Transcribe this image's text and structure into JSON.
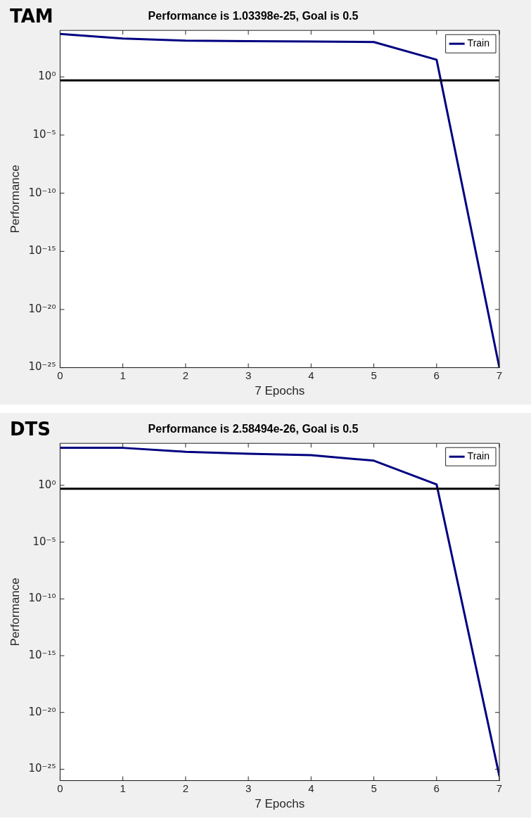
{
  "chart_data": [
    {
      "type": "line",
      "title": "Performance is 1.03398e-25, Goal is 0.5",
      "xlabel": "7 Epochs",
      "ylabel": "Performance",
      "annotations": [
        "TAM"
      ],
      "log": "y",
      "legend": "top right",
      "grid": false,
      "marker": "none",
      "line_style": "solid",
      "x": [
        0,
        1,
        2,
        3,
        4,
        5,
        6,
        7
      ],
      "series": [
        {
          "name": "Train",
          "color": "#000080",
          "values": [
            5000,
            2000,
            1300,
            1200,
            1100,
            1000,
            30,
            1.03398e-25
          ]
        }
      ],
      "xlim": [
        0,
        7
      ],
      "xticks": [
        0,
        1,
        2,
        3,
        4,
        5,
        6,
        7
      ],
      "ylim": [
        1e-25,
        10000
      ],
      "yticks": [
        {
          "value": 1,
          "label": "10⁰"
        },
        {
          "value": 1e-05,
          "label": "10⁻⁵"
        },
        {
          "value": 1e-10,
          "label": "10⁻¹⁰"
        },
        {
          "value": 1e-15,
          "label": "10⁻¹⁵"
        },
        {
          "value": 1e-20,
          "label": "10⁻²⁰"
        },
        {
          "value": 1e-25,
          "label": "10⁻²⁵"
        }
      ],
      "ref_lines": [
        {
          "axis": "y",
          "value": 0.5,
          "color": "#000000"
        }
      ]
    },
    {
      "type": "line",
      "title": "Performance is 2.58494e-26, Goal is 0.5",
      "xlabel": "7 Epochs",
      "ylabel": "Performance",
      "annotations": [
        "DTS"
      ],
      "log": "y",
      "legend": "top right",
      "grid": false,
      "marker": "none",
      "line_style": "solid",
      "x": [
        0,
        1,
        2,
        3,
        4,
        5,
        6,
        7
      ],
      "series": [
        {
          "name": "Train",
          "color": "#000080",
          "values": [
            2000,
            2000,
            900,
            600,
            450,
            150,
            1.2,
            2.58494e-26
          ]
        }
      ],
      "xlim": [
        0,
        7
      ],
      "xticks": [
        0,
        1,
        2,
        3,
        4,
        5,
        6,
        7
      ],
      "ylim": [
        1e-26,
        5000
      ],
      "yticks": [
        {
          "value": 1,
          "label": "10⁰"
        },
        {
          "value": 1e-05,
          "label": "10⁻⁵"
        },
        {
          "value": 1e-10,
          "label": "10⁻¹⁰"
        },
        {
          "value": 1e-15,
          "label": "10⁻¹⁵"
        },
        {
          "value": 1e-20,
          "label": "10⁻²⁰"
        },
        {
          "value": 1e-25,
          "label": "10⁻²⁵"
        }
      ],
      "ref_lines": [
        {
          "axis": "y",
          "value": 0.5,
          "color": "#000000"
        }
      ]
    }
  ]
}
